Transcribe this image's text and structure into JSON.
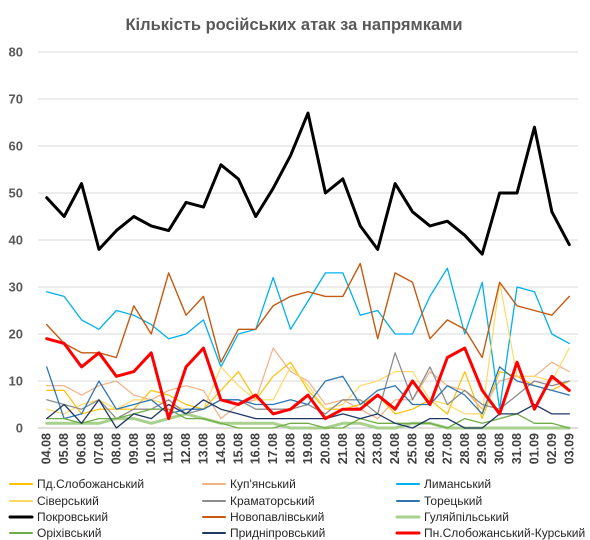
{
  "chart_data": {
    "type": "line",
    "title": "Кількість російських атак за напрямками",
    "xlabel": "",
    "ylabel": "",
    "ylim": [
      0,
      80
    ],
    "yticks": [
      0,
      10,
      20,
      30,
      40,
      50,
      60,
      70,
      80
    ],
    "grid": "horizontal",
    "legend_position": "bottom",
    "categories": [
      "04.08",
      "05.08",
      "06.08",
      "07.08",
      "08.08",
      "09.08",
      "10.08",
      "11.08",
      "12.08",
      "13.08",
      "14.08",
      "15.08",
      "16.08",
      "17.08",
      "18.08",
      "19.08",
      "20.08",
      "21.08",
      "22.08",
      "23.08",
      "24.08",
      "25.08",
      "26.08",
      "27.08",
      "28.08",
      "29.08",
      "30.08",
      "31.08",
      "01.09",
      "02.09",
      "03.09"
    ],
    "series": [
      {
        "name": "Пд.Слобожанський",
        "color": "#ffc000",
        "width": 1.2,
        "values": [
          8,
          8,
          3,
          4,
          4,
          4,
          8,
          7,
          5,
          4,
          8,
          12,
          6,
          11,
          14,
          8,
          4,
          4,
          5,
          7,
          3,
          4,
          6,
          3,
          12,
          2,
          12,
          11,
          9,
          8,
          10
        ]
      },
      {
        "name": "Куп'янський",
        "color": "#f4b183",
        "width": 1.2,
        "values": [
          9,
          9,
          7,
          9,
          10,
          7,
          6,
          8,
          9,
          8,
          2,
          5,
          6,
          17,
          12,
          10,
          5,
          6,
          4,
          2,
          6,
          6,
          12,
          9,
          8,
          4,
          10,
          11,
          11,
          14,
          12
        ]
      },
      {
        "name": "Лиманський",
        "color": "#00b0f0",
        "width": 1.3,
        "values": [
          29,
          28,
          23,
          21,
          25,
          24,
          22,
          19,
          20,
          23,
          13,
          20,
          21,
          32,
          21,
          27,
          33,
          33,
          24,
          25,
          20,
          20,
          28,
          34,
          20,
          31,
          4,
          30,
          29,
          20,
          18
        ]
      },
      {
        "name": "Сіверський",
        "color": "#ffd966",
        "width": 1.2,
        "values": [
          4,
          3,
          5,
          6,
          4,
          6,
          6,
          5,
          4,
          4,
          13,
          9,
          6,
          6,
          13,
          9,
          4,
          5,
          9,
          10,
          12,
          12,
          6,
          5,
          3,
          3,
          31,
          11,
          11,
          10,
          17
        ]
      },
      {
        "name": "Краматорський",
        "color": "#8c8c8c",
        "width": 1.3,
        "values": [
          6,
          5,
          4,
          6,
          2,
          4,
          4,
          6,
          3,
          4,
          6,
          6,
          4,
          4,
          4,
          5,
          3,
          6,
          6,
          3,
          16,
          6,
          13,
          5,
          8,
          5,
          4,
          7,
          10,
          9,
          10
        ]
      },
      {
        "name": "Торецький",
        "color": "#2e75b6",
        "width": 1.3,
        "values": [
          13,
          2,
          3,
          10,
          4,
          5,
          6,
          3,
          4,
          4,
          6,
          6,
          5,
          5,
          6,
          5,
          10,
          11,
          5,
          8,
          9,
          5,
          5,
          9,
          7,
          3,
          13,
          10,
          9,
          8,
          7
        ]
      },
      {
        "name": "Покровський",
        "color": "#000000",
        "width": 3,
        "values": [
          49,
          45,
          52,
          38,
          42,
          45,
          43,
          42,
          48,
          47,
          56,
          53,
          45,
          51,
          58,
          67,
          50,
          53,
          43,
          38,
          52,
          46,
          43,
          44,
          41,
          37,
          50,
          50,
          64,
          46,
          39
        ]
      },
      {
        "name": "Новопавлівський",
        "color": "#c55a11",
        "width": 1.4,
        "values": [
          22,
          18,
          16,
          16,
          15,
          26,
          20,
          33,
          24,
          28,
          14,
          21,
          21,
          26,
          28,
          29,
          28,
          28,
          35,
          19,
          33,
          31,
          19,
          23,
          21,
          15,
          31,
          26,
          25,
          24,
          28
        ]
      },
      {
        "name": "Гуляйпільський",
        "color": "#a9d18e",
        "width": 3,
        "values": [
          1,
          1,
          1,
          1,
          2,
          2,
          1,
          2,
          3,
          2,
          1,
          1,
          1,
          1,
          0,
          0,
          0,
          1,
          1,
          0,
          0,
          1,
          1,
          0,
          0,
          0,
          0,
          0,
          0,
          0,
          0
        ]
      },
      {
        "name": "Оріхівський",
        "color": "#70ad47",
        "width": 1.3,
        "values": [
          2,
          2,
          1,
          2,
          2,
          3,
          4,
          4,
          2,
          2,
          1,
          0,
          0,
          0,
          1,
          1,
          0,
          0,
          2,
          1,
          1,
          1,
          1,
          0,
          2,
          1,
          2,
          3,
          1,
          1,
          0
        ]
      },
      {
        "name": "Придніпровський",
        "color": "#1f3864",
        "width": 1.3,
        "values": [
          2,
          5,
          1,
          6,
          0,
          3,
          2,
          5,
          3,
          6,
          4,
          3,
          2,
          2,
          2,
          2,
          2,
          3,
          2,
          3,
          1,
          0,
          2,
          2,
          0,
          0,
          3,
          3,
          5,
          3,
          3
        ]
      },
      {
        "name": "Пн.Слобожанський-Курський",
        "color": "#ff0000",
        "width": 3,
        "values": [
          19,
          18,
          13,
          16,
          11,
          12,
          16,
          2,
          13,
          17,
          6,
          5,
          7,
          3,
          4,
          7,
          2,
          4,
          4,
          7,
          4,
          10,
          5,
          15,
          17,
          8,
          3,
          14,
          4,
          11,
          8
        ]
      }
    ]
  }
}
